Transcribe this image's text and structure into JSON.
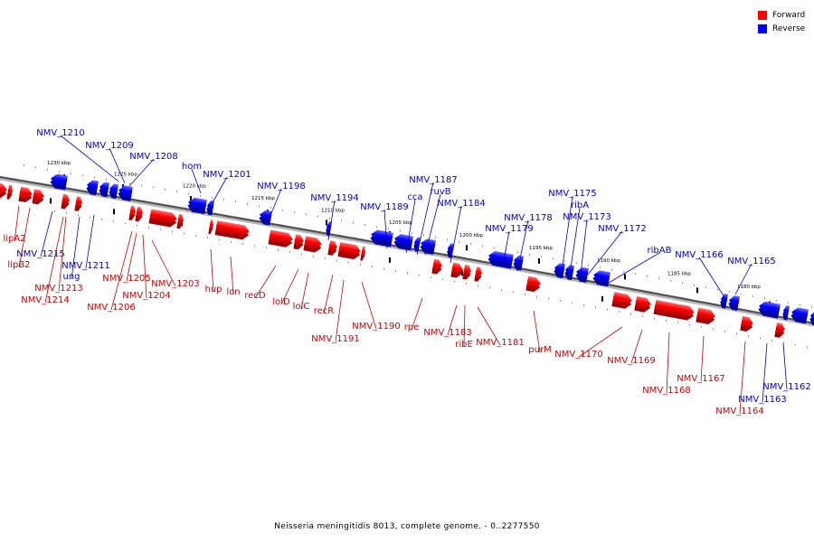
{
  "legend": {
    "forward_label": "Forward",
    "reverse_label": "Reverse",
    "forward_color": "#ff0000",
    "reverse_color": "#0000ff"
  },
  "caption": "Neisseria meningitidis 8013, complete genome. - 0..2277550",
  "scale_marks": [
    "1230 kbp",
    "1225 kbp",
    "1220 kbp",
    "1215 kbp",
    "1210 kbp",
    "1205 kbp",
    "1200 kbp",
    "1195 kbp",
    "1190 kbp",
    "1185 kbp",
    "1180 kbp"
  ],
  "forward_labels": [
    "lipA2",
    "lipB2",
    "NMV_1213",
    "NMV_1214",
    "NMV_1205",
    "NMV_1204",
    "NMV_1206",
    "NMV_1203",
    "hup",
    "lon",
    "recD",
    "lolD",
    "lolC",
    "recR",
    "NMV_1191",
    "NMV_1190",
    "rpe",
    "NMV_1183",
    "ribE",
    "NMV_1181",
    "purM",
    "NMV_1170",
    "NMV_1169",
    "NMV_1168",
    "NMV_1167",
    "NMV_1164"
  ],
  "reverse_labels": [
    "NMV_1210",
    "NMV_1209",
    "NMV_1208",
    "hom",
    "NMV_1201",
    "NMV_1198",
    "NMV_1194",
    "NMV_1189",
    "cca",
    "NMV_1187",
    "ruvB",
    "NMV_1184",
    "NMV_1178",
    "NMV_1179",
    "NMV_1175",
    "ribA",
    "NMV_1173",
    "NMV_1172",
    "ribAB",
    "NMV_1166",
    "NMV_1165",
    "NMV_1215",
    "ung",
    "NMV_1211",
    "NMV_1162",
    "NMV_1163"
  ]
}
